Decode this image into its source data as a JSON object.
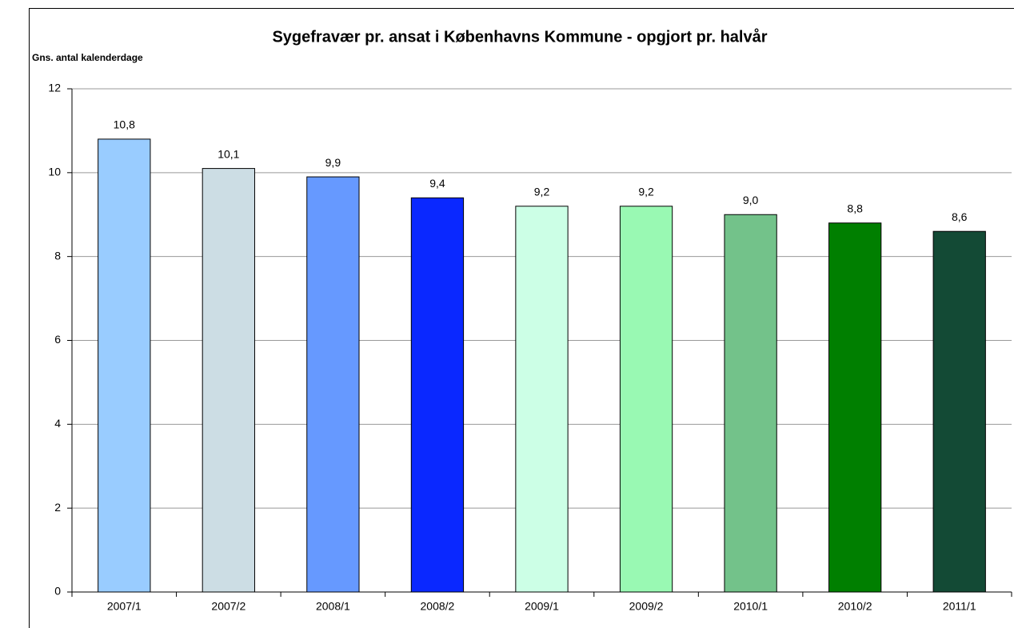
{
  "chart_data": {
    "type": "bar",
    "title": "Sygefravær pr. ansat i Københavns Kommune - opgjort pr. halvår",
    "y_label": "Gns. antal kalenderdage",
    "categories": [
      "2007/1",
      "2007/2",
      "2008/1",
      "2008/2",
      "2009/1",
      "2009/2",
      "2010/1",
      "2010/2",
      "2011/1"
    ],
    "values": [
      10.8,
      10.1,
      9.9,
      9.4,
      9.2,
      9.2,
      9.0,
      8.8,
      8.6
    ],
    "value_labels": [
      "10,8",
      "10,1",
      "9,9",
      "9,4",
      "9,2",
      "9,2",
      "9,0",
      "8,8",
      "8,6"
    ],
    "colors": [
      "#99ccff",
      "#ccdde4",
      "#6699ff",
      "#0a28ff",
      "#ccffe6",
      "#99f9b3",
      "#73c28a",
      "#007f00",
      "#134a35"
    ],
    "ylim": [
      0,
      12
    ],
    "yticks": [
      0,
      2,
      4,
      6,
      8,
      10,
      12
    ],
    "grid": true
  }
}
